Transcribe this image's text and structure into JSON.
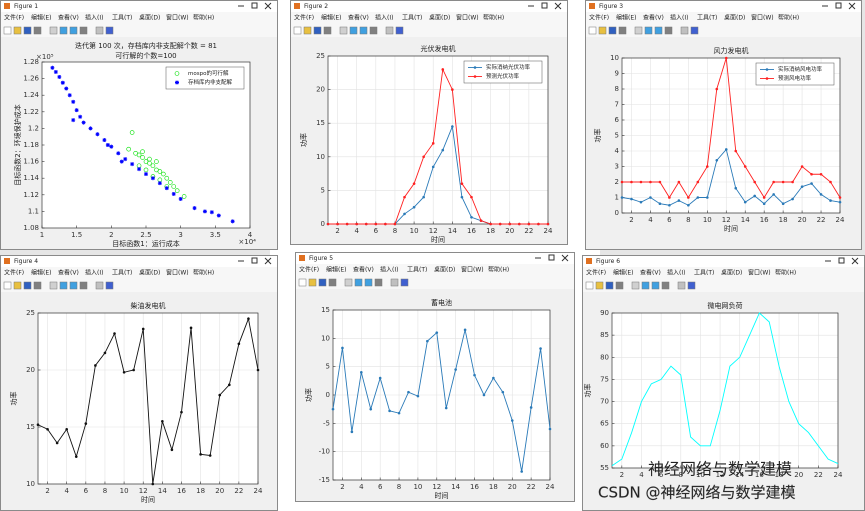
{
  "windows": [
    {
      "title": "Figure 1"
    },
    {
      "title": "Figure 2"
    },
    {
      "title": "Figure 3"
    },
    {
      "title": "Figure 4"
    },
    {
      "title": "Figure 5"
    },
    {
      "title": "Figure 6"
    }
  ],
  "menu": [
    "文件(F)",
    "编辑(E)",
    "查看(V)",
    "插入(I)",
    "工具(T)",
    "桌面(D)",
    "窗口(W)",
    "帮助(H)"
  ],
  "watermark": "CSDN @神经网络与数学建模",
  "wechat_mark": "神经网络与数学建模",
  "chart_data": [
    {
      "type": "scatter",
      "title": "迭代第 100 次，存档库内非支配解个数 = 81",
      "subtitle": "可行解的个数=100",
      "xlabel": "目标函数1：运行成本",
      "ylabel": "目标函数2：环境保护成本",
      "x_exponent": "×10⁴",
      "y_exponent": "×10⁵",
      "xlim": [
        1,
        4
      ],
      "ylim": [
        1.08,
        1.28
      ],
      "xticks": [
        1,
        1.5,
        2,
        2.5,
        3,
        3.5,
        4
      ],
      "yticks": [
        1.08,
        1.1,
        1.12,
        1.14,
        1.16,
        1.18,
        1.2,
        1.22,
        1.24,
        1.26,
        1.28
      ],
      "grid": false,
      "legend": "upper right",
      "series": [
        {
          "name": "mospo的可行解",
          "color": "#00e000",
          "marker": "circle",
          "x": [
            2.3,
            2.25,
            2.35,
            2.4,
            2.45,
            2.5,
            2.55,
            2.6,
            2.65,
            2.7,
            2.75,
            2.8,
            2.85,
            2.9,
            2.95,
            3.05,
            2.5,
            2.6,
            2.7,
            2.45,
            2.55,
            2.4,
            2.65,
            2.8
          ],
          "values": [
            1.195,
            1.175,
            1.17,
            1.168,
            1.165,
            1.16,
            1.158,
            1.155,
            1.15,
            1.148,
            1.145,
            1.14,
            1.135,
            1.13,
            1.125,
            1.118,
            1.15,
            1.142,
            1.138,
            1.172,
            1.163,
            1.155,
            1.16,
            1.13
          ]
        },
        {
          "name": "存档库内非支配解",
          "color": "#0000ff",
          "marker": "star",
          "x": [
            1.15,
            1.2,
            1.25,
            1.3,
            1.35,
            1.4,
            1.45,
            1.5,
            1.55,
            1.6,
            1.7,
            1.8,
            1.9,
            2.0,
            2.1,
            2.2,
            2.3,
            2.4,
            2.5,
            2.6,
            2.7,
            2.8,
            2.9,
            3.0,
            3.2,
            3.35,
            3.45,
            3.55,
            3.75,
            1.45,
            1.95,
            2.15
          ],
          "values": [
            1.273,
            1.268,
            1.262,
            1.255,
            1.248,
            1.24,
            1.232,
            1.222,
            1.214,
            1.207,
            1.2,
            1.193,
            1.186,
            1.178,
            1.17,
            1.163,
            1.157,
            1.151,
            1.145,
            1.14,
            1.134,
            1.128,
            1.121,
            1.115,
            1.104,
            1.1,
            1.099,
            1.095,
            1.088,
            1.21,
            1.18,
            1.16
          ]
        }
      ]
    },
    {
      "type": "line",
      "title": "光伏发电机",
      "xlabel": "时间",
      "ylabel": "功率",
      "x": [
        1,
        2,
        3,
        4,
        5,
        6,
        7,
        8,
        9,
        10,
        11,
        12,
        13,
        14,
        15,
        16,
        17,
        18,
        19,
        20,
        21,
        22,
        23,
        24
      ],
      "xlim": [
        1,
        24
      ],
      "ylim": [
        0,
        25
      ],
      "xticks": [
        2,
        4,
        6,
        8,
        10,
        12,
        14,
        16,
        18,
        20,
        22,
        24
      ],
      "yticks": [
        0,
        5,
        10,
        15,
        20,
        25
      ],
      "grid": true,
      "legend": "upper right",
      "markers": true,
      "series": [
        {
          "name": "实际消纳光伏功率",
          "color": "#2a7ab8",
          "values": [
            0,
            0,
            0,
            0,
            0,
            0,
            0,
            0,
            1.5,
            2.5,
            4,
            8.5,
            11,
            14.5,
            4,
            1,
            0.5,
            0,
            0,
            0,
            0,
            0,
            0,
            0
          ]
        },
        {
          "name": "预测光伏功率",
          "color": "#ff2020",
          "values": [
            0,
            0,
            0,
            0,
            0,
            0,
            0,
            0,
            4,
            6,
            10,
            12,
            23,
            20,
            6,
            4,
            0.5,
            0,
            0,
            0,
            0,
            0,
            0,
            0
          ]
        }
      ]
    },
    {
      "type": "line",
      "title": "风力发电机",
      "xlabel": "时间",
      "ylabel": "功率",
      "x": [
        1,
        2,
        3,
        4,
        5,
        6,
        7,
        8,
        9,
        10,
        11,
        12,
        13,
        14,
        15,
        16,
        17,
        18,
        19,
        20,
        21,
        22,
        23,
        24
      ],
      "xlim": [
        1,
        24
      ],
      "ylim": [
        0,
        10
      ],
      "xticks": [
        2,
        4,
        6,
        8,
        10,
        12,
        14,
        16,
        18,
        20,
        22,
        24
      ],
      "yticks": [
        0,
        1,
        2,
        3,
        4,
        5,
        6,
        7,
        8,
        9,
        10
      ],
      "grid": true,
      "legend": "upper right",
      "markers": true,
      "series": [
        {
          "name": "实际消纳风电功率",
          "color": "#2a7ab8",
          "values": [
            1,
            0.9,
            0.7,
            1,
            0.6,
            0.5,
            0.8,
            0.5,
            1,
            1,
            3.4,
            4.1,
            1.6,
            0.7,
            1.1,
            0.6,
            1.2,
            0.6,
            0.9,
            1.7,
            1.9,
            1.2,
            0.8,
            0.7
          ]
        },
        {
          "name": "预测风电功率",
          "color": "#ff2020",
          "values": [
            2,
            2,
            2,
            2,
            2,
            1,
            2,
            1,
            2,
            3,
            8,
            10,
            4,
            3,
            2,
            1,
            2,
            2,
            2,
            3,
            2.5,
            2.5,
            2,
            1
          ]
        }
      ]
    },
    {
      "type": "line",
      "title": "柴油发电机",
      "xlabel": "时间",
      "ylabel": "功率",
      "x": [
        1,
        2,
        3,
        4,
        5,
        6,
        7,
        8,
        9,
        10,
        11,
        12,
        13,
        14,
        15,
        16,
        17,
        18,
        19,
        20,
        21,
        22,
        23,
        24
      ],
      "xlim": [
        1,
        24
      ],
      "ylim": [
        10,
        25
      ],
      "xticks": [
        2,
        4,
        6,
        8,
        10,
        12,
        14,
        16,
        18,
        20,
        22,
        24
      ],
      "yticks": [
        10,
        15,
        20,
        25
      ],
      "grid": true,
      "markers": true,
      "series": [
        {
          "color": "#111111",
          "values": [
            15.2,
            14.8,
            13.6,
            14.8,
            12.4,
            15.3,
            20.4,
            21.5,
            23.2,
            19.8,
            20,
            23.6,
            10,
            15.5,
            13,
            16.3,
            23.7,
            12.6,
            12.5,
            17.8,
            18.7,
            22.3,
            24.5,
            20
          ]
        }
      ]
    },
    {
      "type": "line",
      "title": "蓄电池",
      "xlabel": "时间",
      "ylabel": "功率",
      "x": [
        1,
        2,
        3,
        4,
        5,
        6,
        7,
        8,
        9,
        10,
        11,
        12,
        13,
        14,
        15,
        16,
        17,
        18,
        19,
        20,
        21,
        22,
        23,
        24
      ],
      "xlim": [
        1,
        24
      ],
      "ylim": [
        -15,
        15
      ],
      "xticks": [
        2,
        4,
        6,
        8,
        10,
        12,
        14,
        16,
        18,
        20,
        22,
        24
      ],
      "yticks": [
        -15,
        -10,
        -5,
        0,
        5,
        10,
        15
      ],
      "grid": true,
      "markers": true,
      "series": [
        {
          "color": "#2a7ab8",
          "values": [
            -2.5,
            8.3,
            -6.5,
            4,
            -2.5,
            3,
            -2.8,
            -3.2,
            0.5,
            -0.2,
            9.5,
            11,
            -2.3,
            4.5,
            11.5,
            3.5,
            0,
            3,
            0.5,
            -4.5,
            -13.5,
            -2.2,
            8.2,
            -6
          ]
        }
      ]
    },
    {
      "type": "line",
      "title": "微电网负荷",
      "ylabel": "功率",
      "x": [
        1,
        2,
        3,
        4,
        5,
        6,
        7,
        8,
        9,
        10,
        11,
        12,
        13,
        14,
        15,
        16,
        17,
        18,
        19,
        20,
        21,
        22,
        23,
        24
      ],
      "xlim": [
        1,
        24
      ],
      "ylim": [
        55,
        90
      ],
      "xticks": [
        2,
        4,
        6,
        8,
        10,
        12,
        14,
        16,
        18,
        20,
        22,
        24
      ],
      "yticks": [
        55,
        60,
        65,
        70,
        75,
        80,
        85,
        90
      ],
      "grid": true,
      "markers": false,
      "series": [
        {
          "color": "#00ffff",
          "values": [
            55.5,
            57,
            63,
            70,
            74,
            75,
            78,
            76,
            62,
            60,
            60,
            68,
            78,
            80,
            85,
            90,
            88,
            78,
            70,
            65,
            63,
            60,
            57,
            56
          ]
        }
      ]
    }
  ]
}
